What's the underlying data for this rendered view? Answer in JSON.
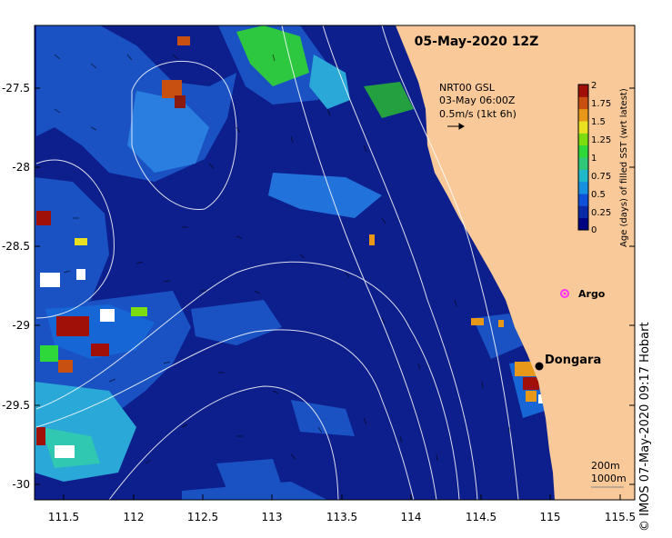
{
  "map": {
    "title": "05-May-2020 12Z",
    "credit": "©  IMOS 07-May-2020 09:17 Hobart",
    "x_ticks": [
      "111.5",
      "112",
      "112.5",
      "113",
      "113.5",
      "114",
      "114.5",
      "115",
      "115.5"
    ],
    "y_ticks": [
      "-27.5",
      "-28",
      "-28.5",
      "-29",
      "-29.5",
      "-30"
    ],
    "x_range": [
      111.3,
      115.6
    ],
    "y_range": [
      -30.1,
      -27.1
    ],
    "colors": {
      "ocean": "#0d1f8c",
      "land": "#f9c999",
      "argo": "#ff33ff"
    }
  },
  "current_info": {
    "line1": "NRT00 GSL",
    "line2": "03-May 06:00Z",
    "line3": "0.5m/s (1kt 6h)"
  },
  "places": {
    "dongara": "Dongara",
    "argo": "Argo"
  },
  "contour_legend": {
    "c200": "200m",
    "c1000": "1000m"
  },
  "colorbar": {
    "title": "Age (days) of filled SST (wrt latest)",
    "ticks": [
      "2",
      "1.75",
      "1.5",
      "1.25",
      "1",
      "0.75",
      "0.5",
      "0.25",
      "0"
    ],
    "colors": [
      "#000080",
      "#0a2aa8",
      "#1050d8",
      "#1890e0",
      "#20b8c8",
      "#30c878",
      "#2ed83a",
      "#7cdc10",
      "#e8e020",
      "#e89818",
      "#c85010",
      "#a01008"
    ]
  }
}
